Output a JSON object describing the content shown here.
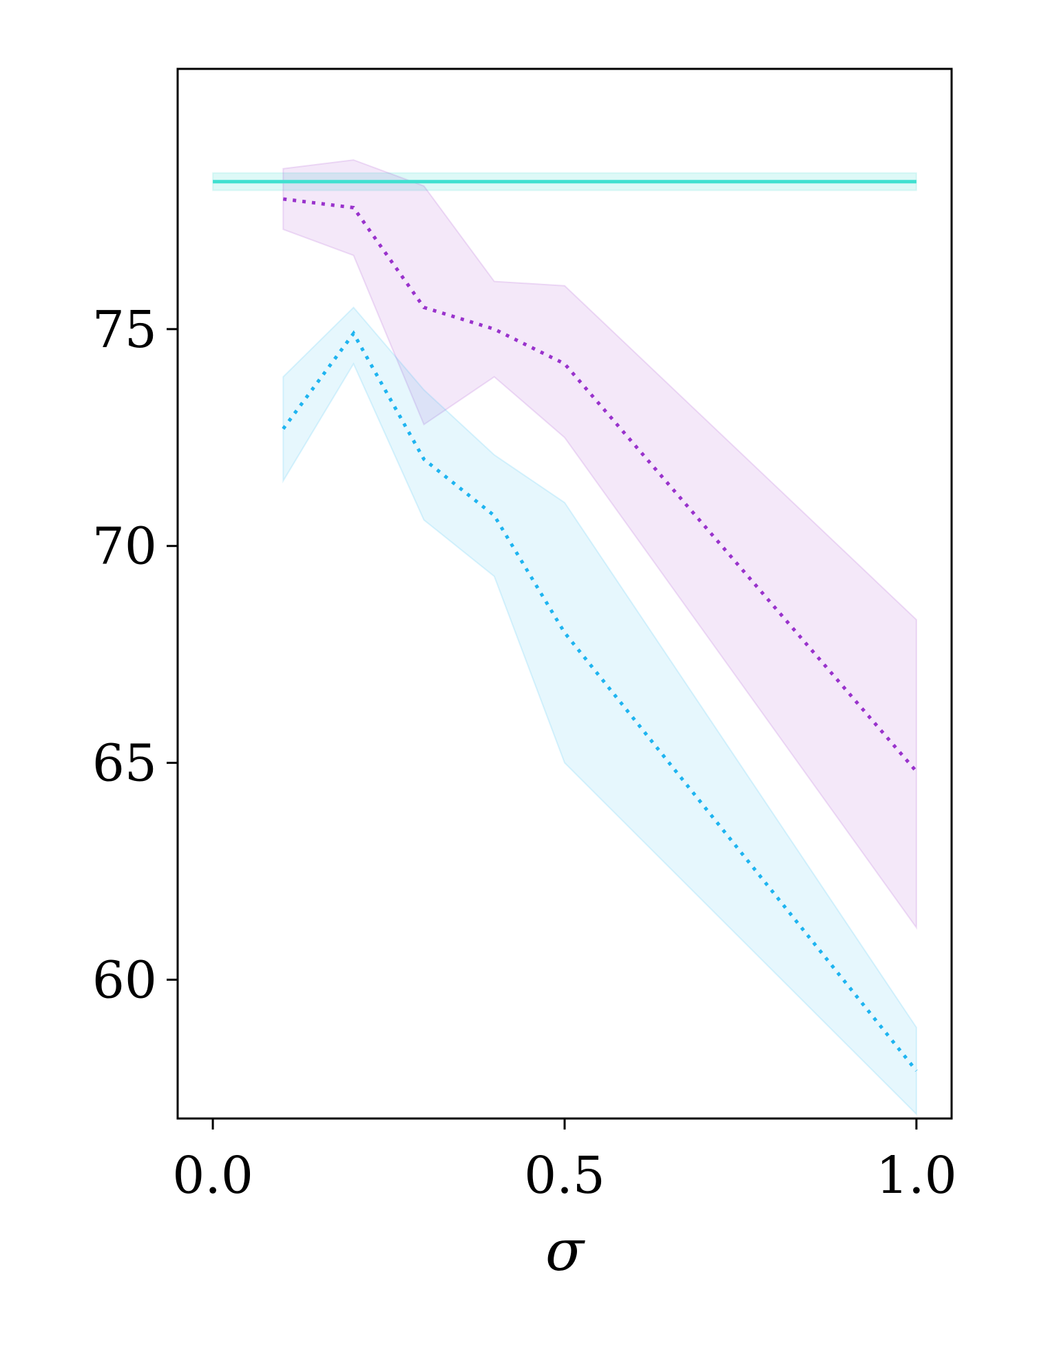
{
  "chart_data": {
    "type": "line",
    "title": "",
    "xlabel": "σ",
    "ylabel": "",
    "xlim": [
      -0.05,
      1.05
    ],
    "ylim": [
      56.8,
      81.0
    ],
    "xticks": [
      0.0,
      0.5,
      1.0
    ],
    "xtick_labels": [
      "0.0",
      "0.5",
      "1.0"
    ],
    "yticks": [
      60,
      65,
      70,
      75
    ],
    "ytick_labels": [
      "60",
      "65",
      "70",
      "75"
    ],
    "grid": false,
    "legend": "none",
    "series": [
      {
        "style": "solid",
        "color": "#40E0D0",
        "x": [
          0.0,
          1.0
        ],
        "y": [
          78.4,
          78.4
        ],
        "lower": [
          78.2,
          78.2
        ],
        "upper": [
          78.6,
          78.6
        ]
      },
      {
        "style": "dotted",
        "color": "#9932CC",
        "x": [
          0.1,
          0.2,
          0.3,
          0.4,
          0.5,
          1.0
        ],
        "y": [
          78.0,
          77.8,
          75.5,
          75.0,
          74.2,
          64.8
        ],
        "lower": [
          77.3,
          76.7,
          72.8,
          73.9,
          72.5,
          61.2
        ],
        "upper": [
          78.7,
          78.9,
          78.3,
          76.1,
          76.0,
          68.3
        ]
      },
      {
        "style": "dotted",
        "color": "#1EB4F0",
        "x": [
          0.1,
          0.2,
          0.3,
          0.4,
          0.5,
          1.0
        ],
        "y": [
          72.7,
          74.9,
          72.0,
          70.7,
          68.0,
          57.9
        ],
        "lower": [
          71.5,
          74.2,
          70.6,
          69.3,
          65.0,
          56.9
        ],
        "upper": [
          73.9,
          75.5,
          73.6,
          72.1,
          71.0,
          58.9
        ]
      }
    ]
  }
}
